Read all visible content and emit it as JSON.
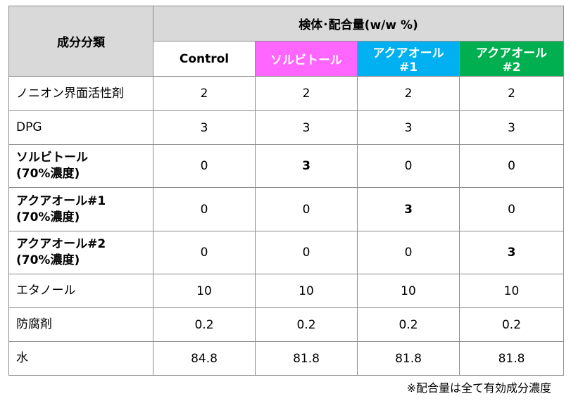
{
  "table": {
    "corner": "成分分類",
    "group_header": "検体･配合量(w/w %)",
    "columns": [
      "Control",
      "ソルビトール",
      "アクアオール#1",
      "アクアオール#2"
    ],
    "rows": [
      {
        "label": "ノニオン界面活性剤",
        "values": [
          2,
          2,
          2,
          2
        ]
      },
      {
        "label": "DPG",
        "values": [
          3,
          3,
          3,
          3
        ]
      },
      {
        "label": "ソルビトール\n(70%濃度)",
        "values": [
          0,
          3,
          0,
          0
        ]
      },
      {
        "label": "アクアオール#1\n(70%濃度)",
        "values": [
          0,
          0,
          3,
          0
        ]
      },
      {
        "label": "アクアオール#2\n(70%濃度)",
        "values": [
          0,
          0,
          0,
          3
        ]
      },
      {
        "label": "エタノール",
        "values": [
          10,
          10,
          10,
          10
        ]
      },
      {
        "label": "防腐剤",
        "values": [
          0.2,
          0.2,
          0.2,
          0.2
        ]
      },
      {
        "label": "水",
        "values": [
          84.8,
          81.8,
          81.8,
          81.8
        ]
      }
    ]
  },
  "footnote": "※配合量は全て有効成分濃度"
}
